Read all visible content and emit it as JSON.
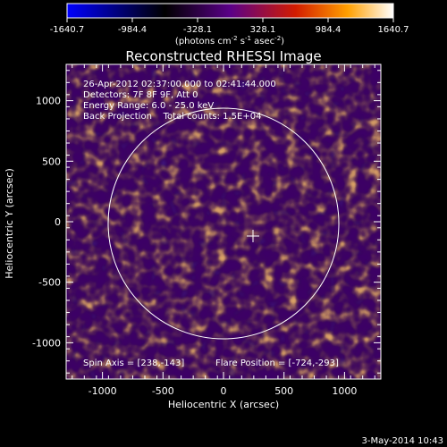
{
  "colorbar": {
    "tick_labels": [
      "-1640.7",
      "-984.4",
      "-328.1",
      "328.1",
      "984.4",
      "1640.7"
    ],
    "unit_label": "(photons cm",
    "unit_label_exp1": "-2",
    "unit_label_mid": " s",
    "unit_label_exp2": "-1",
    "unit_label_mid2": " asec",
    "unit_label_exp3": "-2",
    "unit_label_end": ")"
  },
  "plot": {
    "title": "Reconstructed RHESSI Image",
    "info_lines": [
      "26-Apr-2012 02:37:00.000 to 02:41:44.000",
      "Detectors: 7F 8F 9F, Att 0",
      "Energy Range: 6.0 - 25.0 keV",
      "Back Projection    Total counts: 1.5E+04"
    ],
    "footer_left": "Spin Axis = [238,-143]",
    "footer_right": "Flare Position = [-724,-293]",
    "xlabel": "Heliocentric X (arcsec)",
    "ylabel": "Heliocentric Y (arcsec)",
    "x_ticks": [
      "-1000",
      "-500",
      "0",
      "500",
      "1000"
    ],
    "y_ticks": [
      "1000",
      "500",
      "0",
      "-500",
      "-1000"
    ]
  },
  "chart_data": {
    "type": "heatmap",
    "title": "Reconstructed RHESSI Image",
    "xlabel": "Heliocentric X (arcsec)",
    "ylabel": "Heliocentric Y (arcsec)",
    "xlim": [
      -1300,
      1300
    ],
    "ylim": [
      -1300,
      1300
    ],
    "color_range": [
      -1640.7,
      1640.7
    ],
    "colormap": [
      "#0000ff",
      "#000000",
      "#5a0088",
      "#d21c00",
      "#ffa000",
      "#ffffff"
    ],
    "solar_limb_center": [
      0,
      0
    ],
    "solar_limb_radius": 955,
    "spin_axis": [
      238,
      -143
    ],
    "marker": "plus"
  },
  "timestamp": "3-May-2014 10:43"
}
